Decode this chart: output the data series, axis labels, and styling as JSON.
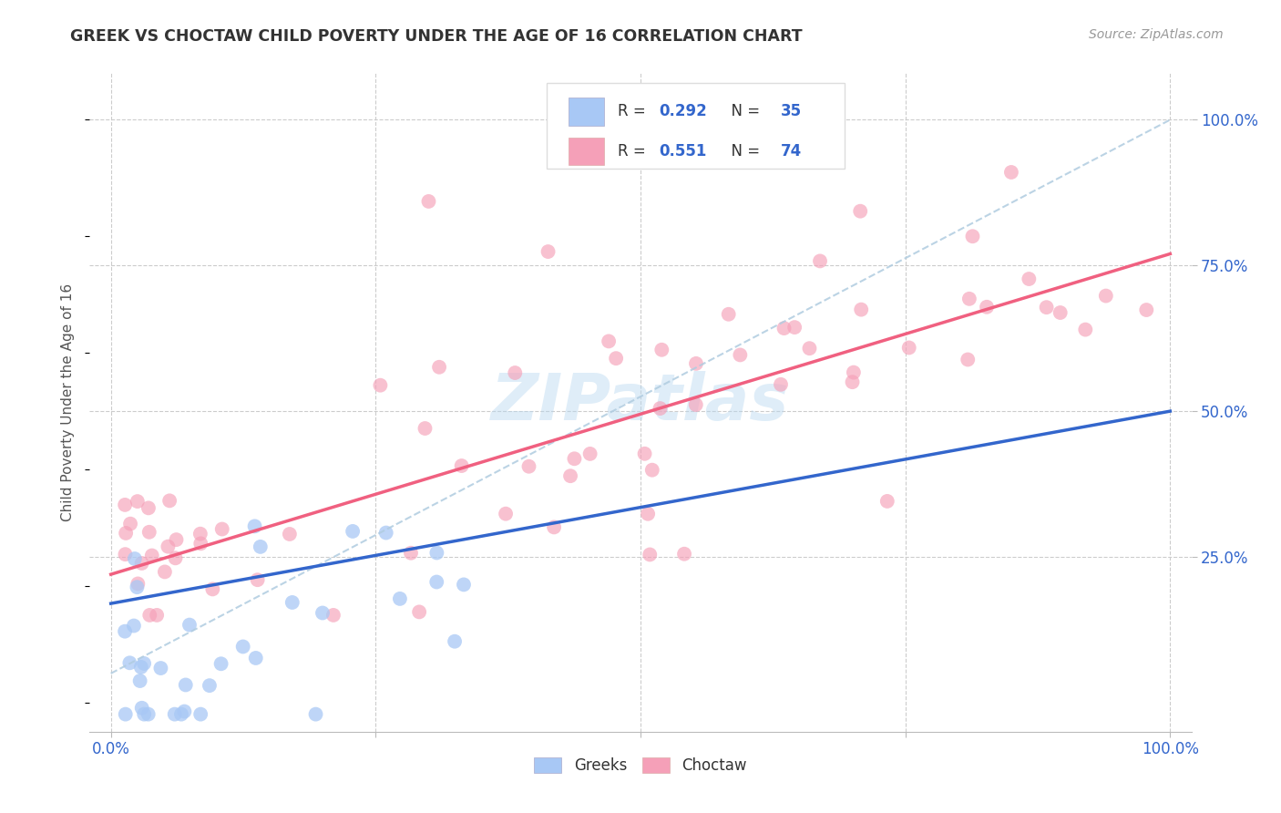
{
  "title": "GREEK VS CHOCTAW CHILD POVERTY UNDER THE AGE OF 16 CORRELATION CHART",
  "source": "Source: ZipAtlas.com",
  "ylabel_label": "Child Poverty Under the Age of 16",
  "watermark": "ZIPatlas",
  "greek_color": "#a8c8f5",
  "choctaw_color": "#f5a0b8",
  "greek_line_color": "#3366cc",
  "choctaw_line_color": "#f06080",
  "dashed_line_color": "#b0cce0",
  "background_color": "#ffffff",
  "grid_color": "#cccccc",
  "r_n_color": "#3366cc",
  "title_color": "#333333",
  "source_color": "#999999",
  "tick_color": "#3366cc",
  "ylabel_color": "#555555",
  "greek_R": 0.292,
  "greek_N": 35,
  "choctaw_R": 0.551,
  "choctaw_N": 74,
  "xlim": [
    0.0,
    1.0
  ],
  "ylim": [
    0.0,
    1.0
  ],
  "xpad": 0.02,
  "ypad": 0.05
}
